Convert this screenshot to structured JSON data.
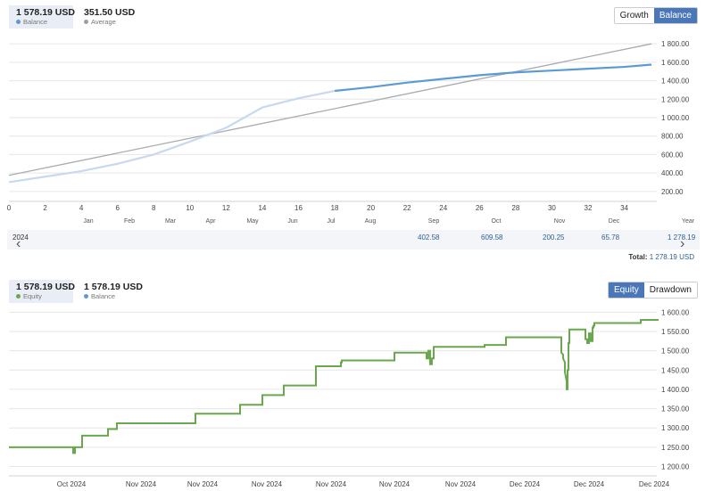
{
  "top": {
    "stats": [
      {
        "value": "1 578.19 USD",
        "label": "Balance",
        "dot_color": "#5b9bd5",
        "active": true
      },
      {
        "value": "351.50 USD",
        "label": "Average",
        "dot_color": "#9aa0a6",
        "active": false
      }
    ],
    "toggle": {
      "growth_label": "Growth",
      "balance_label": "Balance",
      "selected": "Balance"
    },
    "year_row": {
      "year": "2024",
      "values": [
        "402.58",
        "609.58",
        "200.25",
        "65.78",
        "1 278.19"
      ]
    },
    "total": {
      "label": "Total:",
      "value": "1 278.19 USD"
    }
  },
  "bottom": {
    "stats": [
      {
        "value": "1 578.19 USD",
        "label": "Equity",
        "dot_color": "#6aa84f",
        "active": true
      },
      {
        "value": "1 578.19 USD",
        "label": "Balance",
        "dot_color": "#5b9bd5",
        "active": false
      }
    ],
    "toggle": {
      "equity_label": "Equity",
      "drawdown_label": "Drawdown",
      "selected": "Equity"
    }
  },
  "chart_data": [
    {
      "type": "line",
      "x_ticks": [
        0,
        2,
        4,
        6,
        8,
        10,
        12,
        14,
        16,
        18,
        20,
        22,
        24,
        26,
        28,
        30,
        32,
        34
      ],
      "month_labels": [
        "Jan",
        "Feb",
        "Mar",
        "Apr",
        "May",
        "Jun",
        "Jul",
        "Aug",
        "Sep",
        "Oct",
        "Nov",
        "Dec",
        "Year"
      ],
      "y_ticks": [
        "200.00",
        "400.00",
        "600.00",
        "800.00",
        "1 000.00",
        "1 200.00",
        "1 400.00",
        "1 600.00",
        "1 800.00"
      ],
      "xlim": [
        0,
        35.5
      ],
      "ylim": [
        150,
        1850
      ],
      "grid": true,
      "series": [
        {
          "name": "Balance",
          "color": "#5b9bd5",
          "light_color": "#c8d9ef",
          "x": [
            0,
            2,
            4,
            6,
            8,
            10,
            12,
            13,
            14,
            16,
            17.5,
            18,
            20,
            22,
            24,
            26,
            28,
            30,
            32,
            34,
            35.5
          ],
          "y": [
            300,
            360,
            420,
            500,
            600,
            740,
            890,
            1000,
            1110,
            1210,
            1270,
            1290,
            1330,
            1380,
            1420,
            1460,
            1490,
            1510,
            1530,
            1550,
            1575
          ]
        },
        {
          "name": "Average",
          "color": "#a9abae",
          "x": [
            0,
            35.5
          ],
          "y": [
            375,
            1800
          ]
        }
      ]
    },
    {
      "type": "line",
      "x_labels": [
        "Oct 2024",
        "Nov 2024",
        "Nov 2024",
        "Nov 2024",
        "Nov 2024",
        "Nov 2024",
        "Nov 2024",
        "Dec 2024",
        "Dec 2024",
        "Dec 2024",
        "Dec 2024"
      ],
      "y_ticks": [
        "1 200.00",
        "1 250.00",
        "1 300.00",
        "1 350.00",
        "1 400.00",
        "1 450.00",
        "1 500.00",
        "1 550.00",
        "1 600.00"
      ],
      "ylim": [
        1185,
        1610
      ],
      "grid": true,
      "series": [
        {
          "name": "Equity",
          "color": "#6aa84f",
          "x": [
            0,
            72,
            72,
            74,
            74,
            82,
            82,
            111,
            111,
            121,
            121,
            209,
            209,
            259,
            259,
            284,
            284,
            308,
            308,
            344,
            344,
            372,
            372,
            373,
            373,
            432,
            432,
            468,
            468,
            470,
            470,
            472,
            472,
            474,
            474,
            476,
            476,
            533,
            533,
            557,
            557,
            557,
            619,
            619,
            621,
            621,
            623,
            623,
            625,
            625,
            626,
            626,
            627,
            627,
            628,
            628,
            646,
            646,
            648,
            648,
            650,
            650,
            652,
            652,
            654,
            654,
            655,
            655,
            656,
            656,
            708,
            708,
            728
          ],
          "y": [
            1250,
            1250,
            1235,
            1235,
            1250,
            1250,
            1280,
            1280,
            1297,
            1297,
            1312,
            1312,
            1337,
            1337,
            1360,
            1360,
            1385,
            1385,
            1410,
            1410,
            1460,
            1460,
            1470,
            1470,
            1475,
            1475,
            1495,
            1495,
            1480,
            1480,
            1500,
            1500,
            1465,
            1465,
            1480,
            1480,
            1510,
            1510,
            1515,
            1515,
            1535,
            1535,
            1535,
            1495,
            1490,
            1480,
            1470,
            1445,
            1420,
            1400,
            1400,
            1450,
            1450,
            1520,
            1520,
            1555,
            1555,
            1530,
            1530,
            1520,
            1520,
            1545,
            1545,
            1525,
            1525,
            1560,
            1560,
            1565,
            1565,
            1572,
            1572,
            1580,
            1580
          ],
          "x_units": "chart-index"
        }
      ]
    }
  ]
}
